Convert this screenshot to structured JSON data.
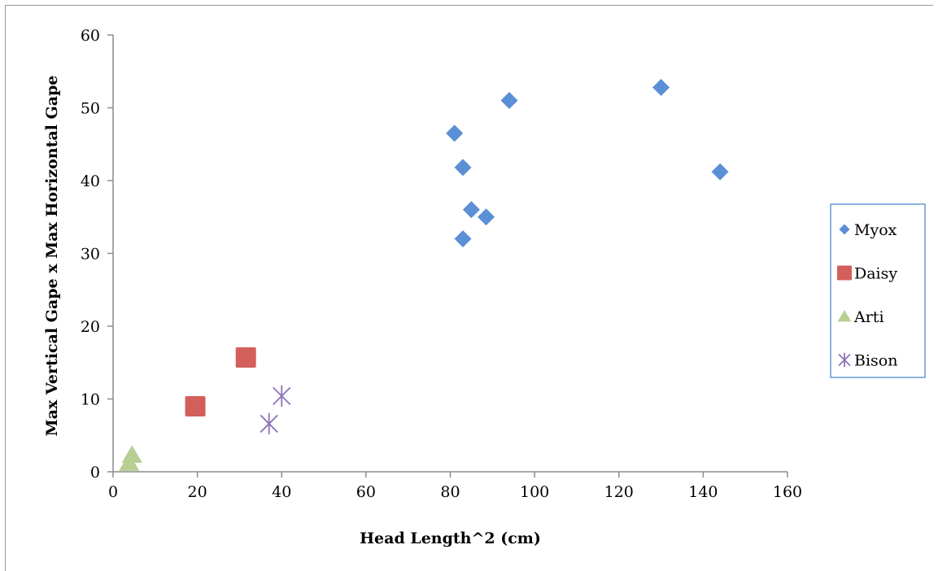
{
  "chart_data": {
    "type": "scatter",
    "title": "",
    "xlabel": "Head Length^2 (cm)",
    "ylabel": "Max Vertical Gape x Max Horizontal Gape",
    "xlim": [
      0,
      160
    ],
    "ylim": [
      0,
      60
    ],
    "x_ticks": [
      "0",
      "20",
      "40",
      "60",
      "80",
      "100",
      "120",
      "140",
      "160"
    ],
    "y_ticks": [
      "0",
      "10",
      "20",
      "30",
      "40",
      "50",
      "60"
    ],
    "grid": false,
    "legend_position": "right",
    "series": [
      {
        "name": "Myox",
        "marker": "diamond",
        "color": "#5b8fd6",
        "points": [
          [
            81,
            46.5
          ],
          [
            83,
            41.8
          ],
          [
            85,
            36
          ],
          [
            88.5,
            35
          ],
          [
            83,
            32
          ],
          [
            94,
            51
          ],
          [
            130,
            52.8
          ],
          [
            144,
            41.2
          ]
        ]
      },
      {
        "name": "Daisy",
        "marker": "square",
        "color": "#d35f5b",
        "points": [
          [
            19.5,
            9
          ],
          [
            31.5,
            15.7
          ]
        ]
      },
      {
        "name": "Arti",
        "marker": "triangle",
        "color": "#b7cf92",
        "points": [
          [
            4.5,
            2.3
          ],
          [
            3.8,
            1.2
          ]
        ]
      },
      {
        "name": "Bison",
        "marker": "asterisk",
        "color": "#8c73b8",
        "points": [
          [
            37,
            6.6
          ],
          [
            40,
            10.4
          ]
        ]
      }
    ]
  }
}
